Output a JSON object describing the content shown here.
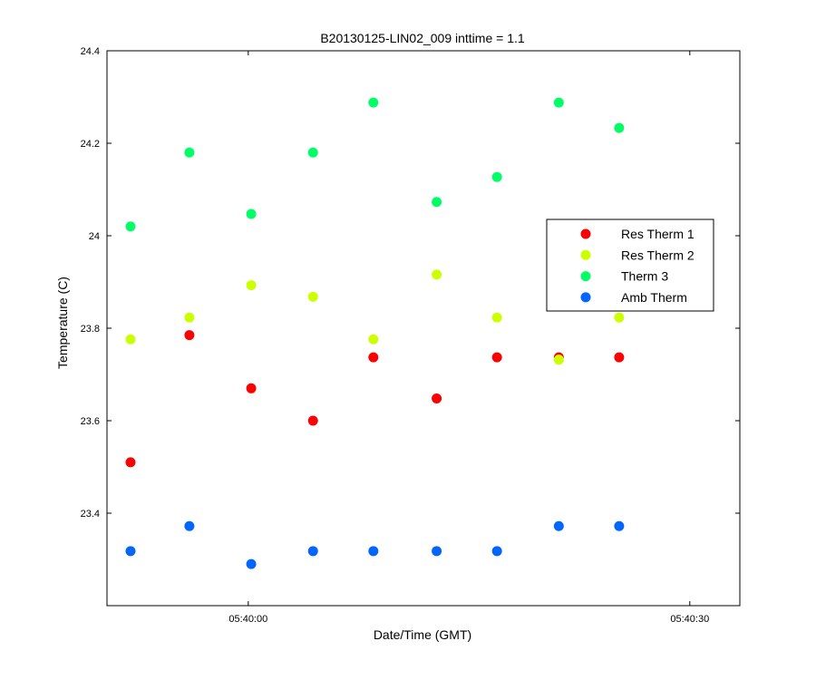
{
  "chart_data": {
    "type": "scatter",
    "title": "B20130125-LIN02_009 inttime = 1.1",
    "xlabel": "Date/Time (GMT)",
    "ylabel": "Temperature (C)",
    "x_unit": "seconds after 05:40:00",
    "xlim": [
      -9.6,
      33.4
    ],
    "ylim": [
      23.2,
      24.4
    ],
    "x_ticks": [
      {
        "value": 0,
        "label": "05:40:00"
      },
      {
        "value": 30,
        "label": "05:40:30"
      }
    ],
    "y_ticks": [
      {
        "value": 23.4,
        "label": "23.4"
      },
      {
        "value": 23.6,
        "label": "23.6"
      },
      {
        "value": 23.8,
        "label": "23.8"
      },
      {
        "value": 24.0,
        "label": "24"
      },
      {
        "value": 24.2,
        "label": "24.2"
      },
      {
        "value": 24.4,
        "label": "24.4"
      }
    ],
    "x": [
      -8.0,
      -4.0,
      0.2,
      4.4,
      8.5,
      12.8,
      16.9,
      21.1,
      25.2
    ],
    "grid": false,
    "legend_position": "right",
    "series": [
      {
        "name": "Res Therm 1",
        "color": "#ff0000",
        "values": [
          23.51,
          23.785,
          23.67,
          23.6,
          23.737,
          23.648,
          23.737,
          23.737,
          23.737
        ]
      },
      {
        "name": "Res Therm 2",
        "color": "#ccff00",
        "values": [
          23.776,
          23.823,
          23.893,
          23.868,
          23.776,
          23.916,
          23.823,
          23.732,
          23.823
        ]
      },
      {
        "name": "Therm 3",
        "color": "#00ff66",
        "values": [
          24.02,
          24.18,
          24.047,
          24.18,
          24.288,
          24.073,
          24.127,
          24.288,
          24.233
        ]
      },
      {
        "name": "Amb Therm",
        "color": "#0066ff",
        "values": [
          23.318,
          23.372,
          23.29,
          23.318,
          23.318,
          23.318,
          23.318,
          23.372,
          23.372
        ]
      }
    ]
  }
}
